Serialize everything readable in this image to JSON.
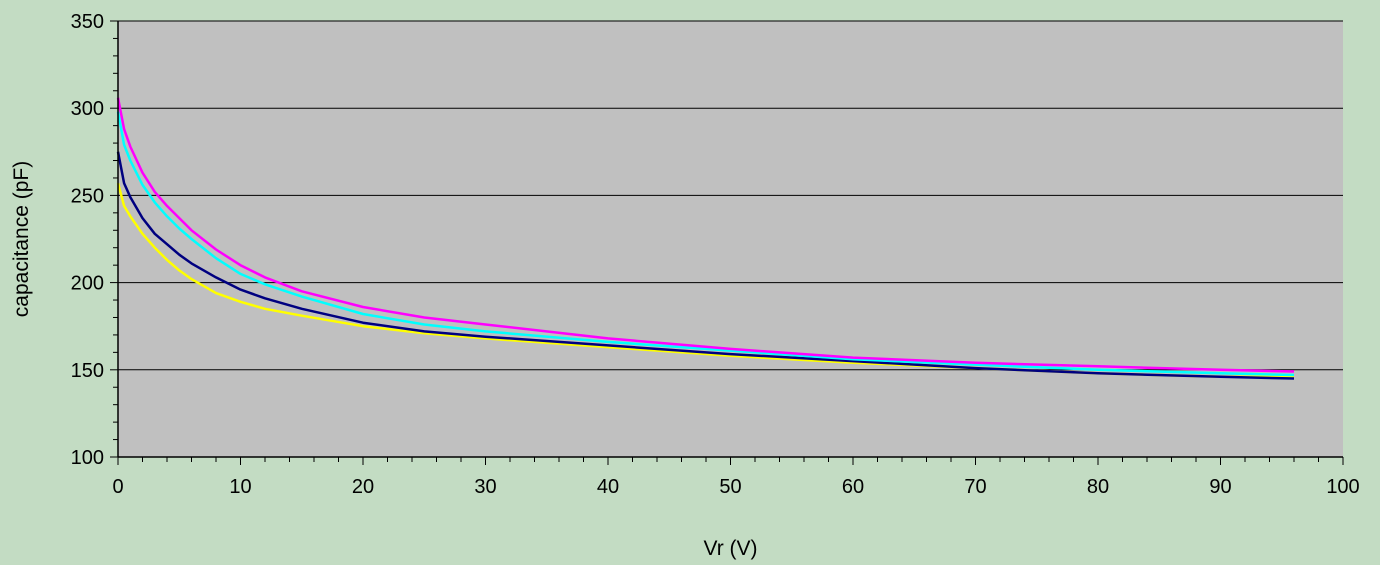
{
  "chart_data": {
    "type": "line",
    "title": "",
    "xlabel": "Vr (V)",
    "ylabel": "capacitance (pF)",
    "xlim": [
      0,
      100
    ],
    "ylim": [
      100,
      350
    ],
    "x_ticks": [
      0,
      10,
      20,
      30,
      40,
      50,
      60,
      70,
      80,
      90,
      100
    ],
    "y_ticks": [
      100,
      150,
      200,
      250,
      300,
      350
    ],
    "grid": "horizontal",
    "legend": "none",
    "plot_background": "#c0c0c0",
    "figure_background": "#c3dcc3",
    "series": [
      {
        "color": "#ffff00",
        "x": [
          0,
          0.5,
          1,
          2,
          3,
          4,
          5,
          6,
          8,
          10,
          12,
          15,
          20,
          25,
          30,
          40,
          50,
          60,
          70,
          80,
          90,
          96
        ],
        "y": [
          257,
          244,
          238,
          228,
          220,
          213,
          207,
          202,
          194,
          189,
          185,
          181,
          175,
          171,
          168,
          163,
          158,
          154,
          151,
          148,
          146,
          146
        ]
      },
      {
        "color": "#000080",
        "x": [
          0,
          0.5,
          1,
          2,
          3,
          4,
          5,
          6,
          8,
          10,
          12,
          15,
          20,
          25,
          30,
          40,
          50,
          60,
          70,
          80,
          90,
          96
        ],
        "y": [
          275,
          257,
          249,
          237,
          228,
          222,
          216,
          211,
          203,
          196,
          191,
          185,
          177,
          172,
          169,
          164,
          159,
          155,
          151,
          148,
          146,
          145
        ]
      },
      {
        "color": "#00ffff",
        "x": [
          0,
          0.5,
          1,
          2,
          3,
          4,
          5,
          6,
          8,
          10,
          12,
          15,
          20,
          25,
          30,
          40,
          50,
          60,
          70,
          80,
          90,
          96
        ],
        "y": [
          298,
          279,
          270,
          256,
          246,
          238,
          231,
          225,
          214,
          205,
          199,
          192,
          182,
          176,
          172,
          166,
          161,
          156,
          153,
          150,
          148,
          147
        ]
      },
      {
        "color": "#ff00ff",
        "x": [
          0,
          0.5,
          1,
          2,
          3,
          4,
          5,
          6,
          8,
          10,
          12,
          15,
          20,
          25,
          30,
          40,
          50,
          60,
          70,
          80,
          90,
          96
        ],
        "y": [
          306,
          288,
          278,
          263,
          252,
          244,
          237,
          230,
          219,
          210,
          203,
          195,
          186,
          180,
          176,
          168,
          162,
          157,
          154,
          152,
          150,
          149
        ]
      }
    ]
  }
}
